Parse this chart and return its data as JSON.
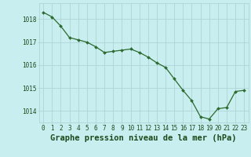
{
  "x": [
    0,
    1,
    2,
    3,
    4,
    5,
    6,
    7,
    8,
    9,
    10,
    11,
    12,
    13,
    14,
    15,
    16,
    17,
    18,
    19,
    20,
    21,
    22,
    23
  ],
  "y": [
    1018.3,
    1018.1,
    1017.7,
    1017.2,
    1017.1,
    1017.0,
    1016.8,
    1016.55,
    1016.6,
    1016.65,
    1016.7,
    1016.55,
    1016.35,
    1016.1,
    1015.9,
    1015.4,
    1014.9,
    1014.45,
    1013.75,
    1013.65,
    1014.1,
    1014.15,
    1014.85,
    1014.9
  ],
  "line_color": "#2d6a2d",
  "marker_color": "#2d6a2d",
  "bg_color": "#c8eef0",
  "grid_color": "#aed4d6",
  "text_color": "#1a4a1a",
  "xlabel": "Graphe pression niveau de la mer (hPa)",
  "ylim": [
    1013.5,
    1018.7
  ],
  "yticks": [
    1014,
    1015,
    1016,
    1017,
    1018
  ],
  "xticks": [
    0,
    1,
    2,
    3,
    4,
    5,
    6,
    7,
    8,
    9,
    10,
    11,
    12,
    13,
    14,
    15,
    16,
    17,
    18,
    19,
    20,
    21,
    22,
    23
  ],
  "tick_fontsize": 5.5,
  "xlabel_fontsize": 7.5
}
